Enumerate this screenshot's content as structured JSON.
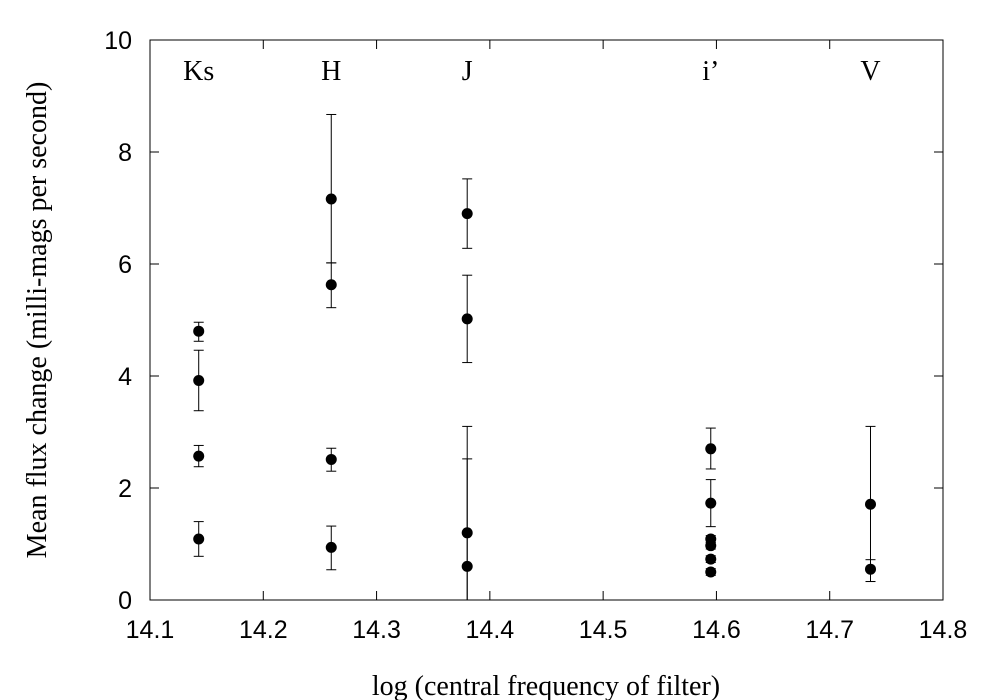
{
  "chart_data": {
    "type": "scatter",
    "title": "",
    "xlabel": "log (central frequency of filter)",
    "ylabel": "Mean flux change (milli-mags per second)",
    "xlim": [
      14.1,
      14.8
    ],
    "ylim": [
      0,
      10
    ],
    "xticks": [
      14.1,
      14.2,
      14.3,
      14.4,
      14.5,
      14.6,
      14.7,
      14.8
    ],
    "yticks": [
      0,
      2,
      4,
      6,
      8,
      10
    ],
    "xtick_labels": [
      "14.1",
      "14.2",
      "14.3",
      "14.4",
      "14.5",
      "14.6",
      "14.7",
      "14.8"
    ],
    "ytick_labels": [
      "0",
      "2",
      "4",
      "6",
      "8",
      "10"
    ],
    "grid": false,
    "filter_labels": [
      {
        "text": "Ks",
        "x": 14.143
      },
      {
        "text": "H",
        "x": 14.26
      },
      {
        "text": "J",
        "x": 14.38
      },
      {
        "text": "i’",
        "x": 14.595
      },
      {
        "text": "V",
        "x": 14.736
      }
    ],
    "points": [
      {
        "filter": "Ks",
        "x": 14.143,
        "y": 4.8,
        "y_low": 4.62,
        "y_high": 4.96
      },
      {
        "filter": "Ks",
        "x": 14.143,
        "y": 3.92,
        "y_low": 3.38,
        "y_high": 4.46
      },
      {
        "filter": "Ks",
        "x": 14.143,
        "y": 2.57,
        "y_low": 2.38,
        "y_high": 2.76
      },
      {
        "filter": "Ks",
        "x": 14.143,
        "y": 1.09,
        "y_low": 0.78,
        "y_high": 1.4
      },
      {
        "filter": "H",
        "x": 14.26,
        "y": 7.16,
        "y_low": 6.02,
        "y_high": 8.67
      },
      {
        "filter": "H",
        "x": 14.26,
        "y": 5.63,
        "y_low": 5.22,
        "y_high": 6.02
      },
      {
        "filter": "H",
        "x": 14.26,
        "y": 2.51,
        "y_low": 2.3,
        "y_high": 2.71
      },
      {
        "filter": "H",
        "x": 14.26,
        "y": 0.94,
        "y_low": 0.54,
        "y_high": 1.32
      },
      {
        "filter": "J",
        "x": 14.38,
        "y": 6.9,
        "y_low": 6.28,
        "y_high": 7.52
      },
      {
        "filter": "J",
        "x": 14.38,
        "y": 5.02,
        "y_low": 4.24,
        "y_high": 5.8
      },
      {
        "filter": "J",
        "x": 14.38,
        "y": 1.2,
        "y_low": 0.0,
        "y_high": 3.1
      },
      {
        "filter": "J",
        "x": 14.38,
        "y": 0.6,
        "y_low": 0.0,
        "y_high": 2.52
      },
      {
        "filter": "i’",
        "x": 14.595,
        "y": 2.7,
        "y_low": 2.34,
        "y_high": 3.07
      },
      {
        "filter": "i’",
        "x": 14.595,
        "y": 1.73,
        "y_low": 1.31,
        "y_high": 2.15
      },
      {
        "filter": "i’",
        "x": 14.595,
        "y": 1.09,
        "y_low": 1.03,
        "y_high": 1.15
      },
      {
        "filter": "i’",
        "x": 14.595,
        "y": 0.97,
        "y_low": 0.91,
        "y_high": 1.03
      },
      {
        "filter": "i’",
        "x": 14.595,
        "y": 0.73,
        "y_low": 0.67,
        "y_high": 0.79
      },
      {
        "filter": "i’",
        "x": 14.595,
        "y": 0.5,
        "y_low": 0.44,
        "y_high": 0.56
      },
      {
        "filter": "V",
        "x": 14.736,
        "y": 1.71,
        "y_low": 0.33,
        "y_high": 3.1
      },
      {
        "filter": "V",
        "x": 14.736,
        "y": 0.55,
        "y_low": 0.33,
        "y_high": 0.72
      }
    ]
  },
  "colors": {
    "marker": "#000000",
    "axis": "#000000",
    "background": "#ffffff"
  }
}
